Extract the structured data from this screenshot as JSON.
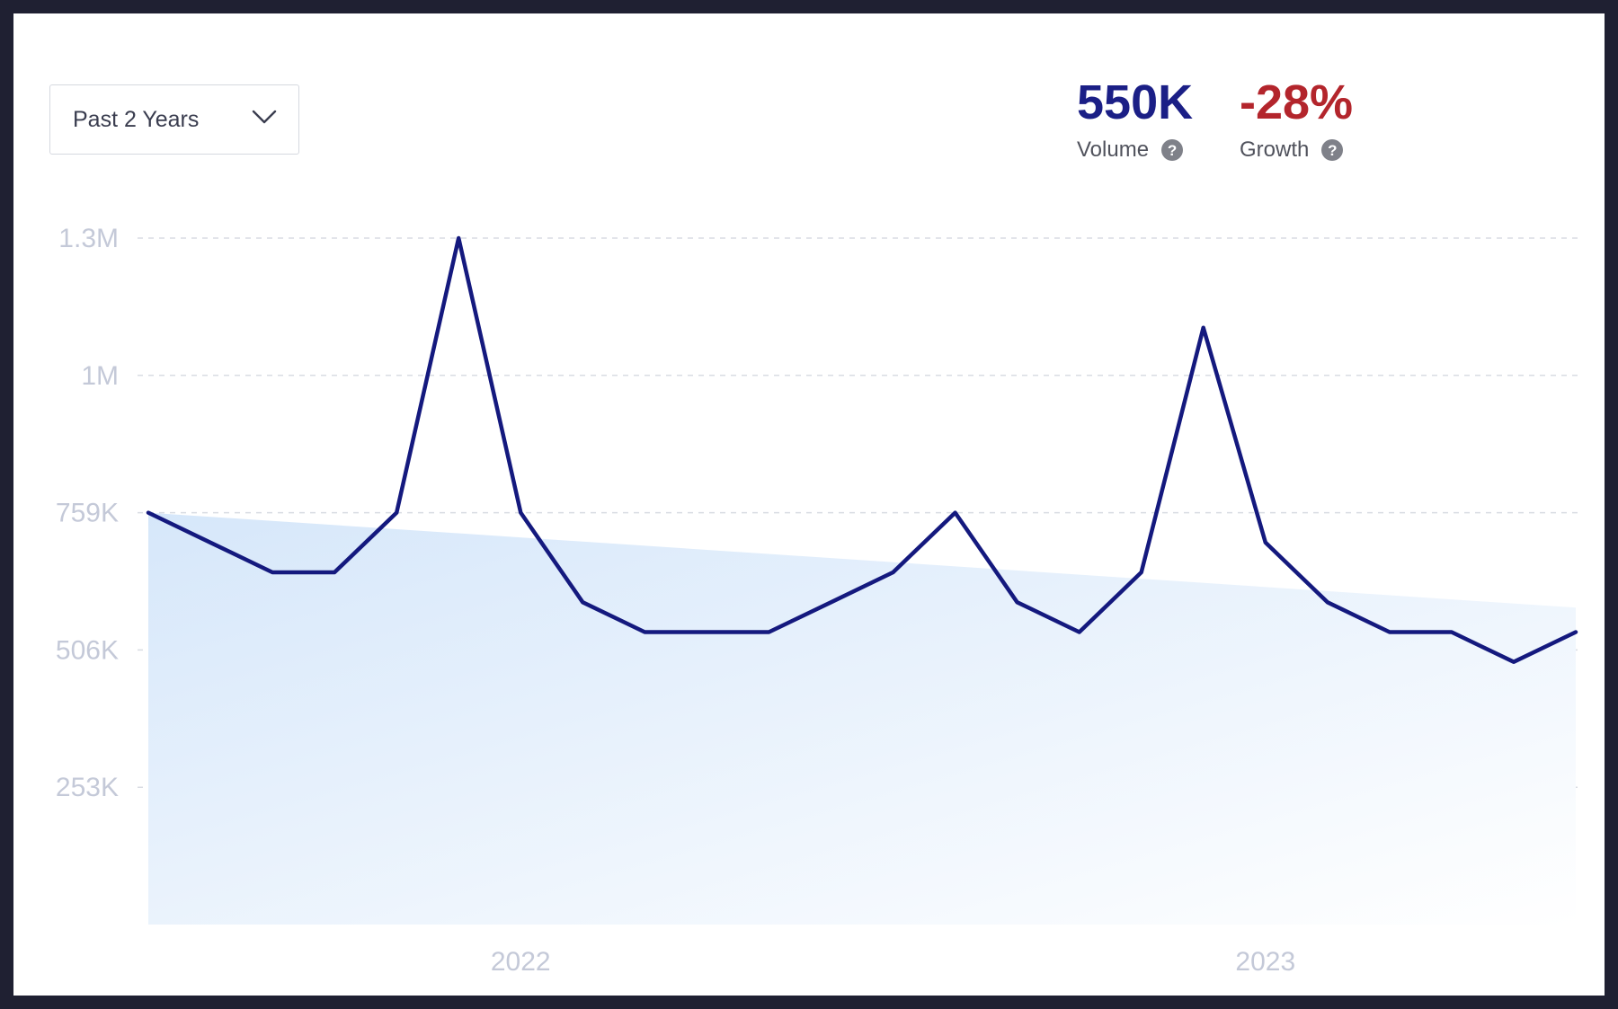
{
  "controls": {
    "range_label": "Past 2 Years",
    "range_icon": "chevron-down-icon"
  },
  "stats": {
    "volume": {
      "value": "550K",
      "label": "Volume",
      "help_icon": "help-icon",
      "color": "#1b1f86"
    },
    "growth": {
      "value": "-28%",
      "label": "Growth",
      "help_icon": "help-icon",
      "color": "#b3252c"
    }
  },
  "chart_data": {
    "type": "line",
    "title": "",
    "xlabel": "",
    "ylabel": "",
    "ylim": [
      0,
      1265000
    ],
    "y_ticks": [
      {
        "value": 253000,
        "label": "253K"
      },
      {
        "value": 506000,
        "label": "506K"
      },
      {
        "value": 759000,
        "label": "759K"
      },
      {
        "value": 1012000,
        "label": "1M"
      },
      {
        "value": 1265000,
        "label": "1.3M"
      }
    ],
    "x_ticks": [
      {
        "index": 6,
        "label": "2022"
      },
      {
        "index": 18,
        "label": "2023"
      }
    ],
    "grid": true,
    "legend": "none",
    "line_color": "#14197e",
    "trend_fill_color": "#dce9fa",
    "series": [
      {
        "values": [
          759000,
          704000,
          649000,
          649000,
          759000,
          1265000,
          759000,
          594000,
          539000,
          539000,
          539000,
          594000,
          649000,
          759000,
          594000,
          539000,
          649000,
          1100000,
          704000,
          594000,
          539000,
          539000,
          484000,
          539000
        ]
      }
    ],
    "trend_line": {
      "start": 759000,
      "end": 584000
    }
  }
}
